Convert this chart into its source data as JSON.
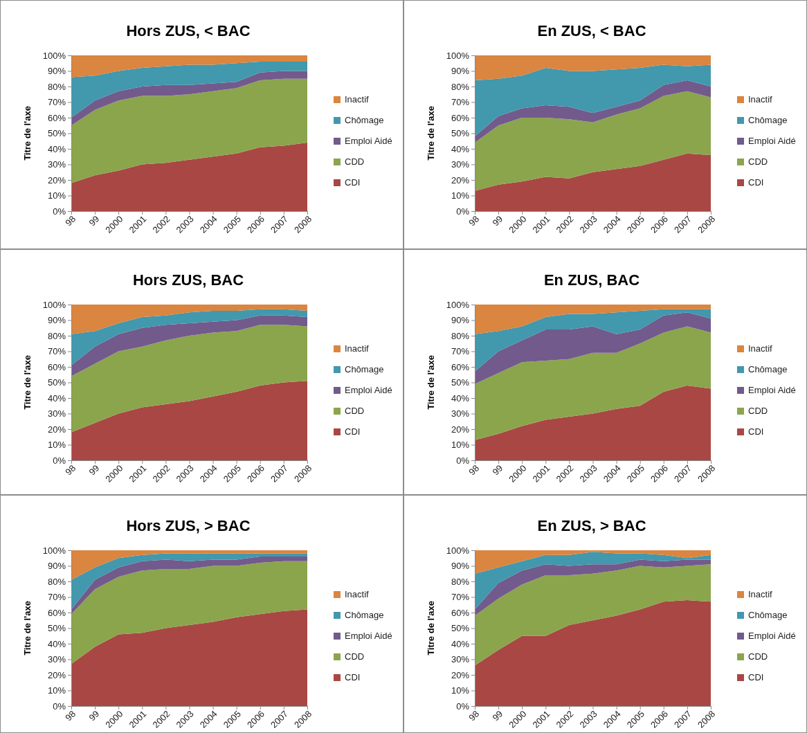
{
  "chart_data": [
    {
      "type": "area",
      "stacked": true,
      "title": "Hors ZUS, < BAC",
      "ylabel": "Titre de l'axe",
      "legend": "right",
      "categories": [
        "98",
        "99",
        "2000",
        "2001",
        "2002",
        "2003",
        "2004",
        "2005",
        "2006",
        "2007",
        "2008"
      ],
      "ylim": [
        0,
        100
      ],
      "yticks": [
        {
          "value": 0,
          "label": "0%"
        },
        {
          "value": 10,
          "label": "10%"
        },
        {
          "value": 20,
          "label": "20%"
        },
        {
          "value": 30,
          "label": "30%"
        },
        {
          "value": 40,
          "label": "40%"
        },
        {
          "value": 50,
          "label": "50%"
        },
        {
          "value": 60,
          "label": "60%"
        },
        {
          "value": 70,
          "label": "70%"
        },
        {
          "value": 80,
          "label": "80%"
        },
        {
          "value": 90,
          "label": "90%"
        },
        {
          "value": 100,
          "label": "100%"
        }
      ],
      "series": [
        {
          "name": "CDI",
          "color": "#a94744",
          "values": [
            18,
            23,
            26,
            30,
            31,
            33,
            35,
            37,
            41,
            42,
            44
          ]
        },
        {
          "name": "CDD",
          "color": "#8ba54d",
          "values": [
            37,
            42,
            45,
            44,
            43,
            42,
            42,
            42,
            43,
            43,
            41
          ]
        },
        {
          "name": "Emploi Aidé",
          "color": "#725a8c",
          "values": [
            5,
            6,
            6,
            6,
            7,
            6,
            5,
            4,
            5,
            5,
            5
          ]
        },
        {
          "name": "Chômage",
          "color": "#4298ad",
          "values": [
            26,
            16,
            13,
            12,
            12,
            13,
            12,
            12,
            7,
            6,
            6
          ]
        },
        {
          "name": "Inactif",
          "color": "#da8540",
          "values": [
            14,
            13,
            10,
            8,
            7,
            6,
            6,
            5,
            4,
            4,
            4
          ]
        }
      ]
    },
    {
      "type": "area",
      "stacked": true,
      "title": "En ZUS, < BAC",
      "ylabel": "Titre de l'axe",
      "legend": "right",
      "categories": [
        "98",
        "99",
        "2000",
        "2001",
        "2002",
        "2003",
        "2004",
        "2005",
        "2006",
        "2007",
        "2008"
      ],
      "ylim": [
        0,
        100
      ],
      "yticks": [
        {
          "value": 0,
          "label": "0%"
        },
        {
          "value": 10,
          "label": "10%"
        },
        {
          "value": 20,
          "label": "20%"
        },
        {
          "value": 30,
          "label": "30%"
        },
        {
          "value": 40,
          "label": "40%"
        },
        {
          "value": 50,
          "label": "50%"
        },
        {
          "value": 60,
          "label": "60%"
        },
        {
          "value": 70,
          "label": "70%"
        },
        {
          "value": 80,
          "label": "80%"
        },
        {
          "value": 90,
          "label": "90%"
        },
        {
          "value": 100,
          "label": "100%"
        }
      ],
      "series": [
        {
          "name": "CDI",
          "color": "#a94744",
          "values": [
            13,
            17,
            19,
            22,
            21,
            25,
            27,
            29,
            33,
            37,
            36
          ]
        },
        {
          "name": "CDD",
          "color": "#8ba54d",
          "values": [
            31,
            38,
            41,
            38,
            38,
            32,
            35,
            37,
            41,
            40,
            37
          ]
        },
        {
          "name": "Emploi Aidé",
          "color": "#725a8c",
          "values": [
            4,
            6,
            6,
            8,
            8,
            6,
            5,
            5,
            7,
            7,
            7
          ]
        },
        {
          "name": "Chômage",
          "color": "#4298ad",
          "values": [
            36,
            24,
            21,
            24,
            23,
            27,
            24,
            21,
            13,
            9,
            14
          ]
        },
        {
          "name": "Inactif",
          "color": "#da8540",
          "values": [
            16,
            15,
            13,
            8,
            10,
            10,
            9,
            8,
            6,
            7,
            6
          ]
        }
      ]
    },
    {
      "type": "area",
      "stacked": true,
      "title": "Hors ZUS, BAC",
      "ylabel": "Titre de l'axe",
      "legend": "right",
      "categories": [
        "98",
        "99",
        "2000",
        "2001",
        "2002",
        "2003",
        "2004",
        "2005",
        "2006",
        "2007",
        "2008"
      ],
      "ylim": [
        0,
        100
      ],
      "yticks": [
        {
          "value": 0,
          "label": "0%"
        },
        {
          "value": 10,
          "label": "10%"
        },
        {
          "value": 20,
          "label": "20%"
        },
        {
          "value": 30,
          "label": "30%"
        },
        {
          "value": 40,
          "label": "40%"
        },
        {
          "value": 50,
          "label": "50%"
        },
        {
          "value": 60,
          "label": "60%"
        },
        {
          "value": 70,
          "label": "70%"
        },
        {
          "value": 80,
          "label": "80%"
        },
        {
          "value": 90,
          "label": "90%"
        },
        {
          "value": 100,
          "label": "100%"
        }
      ],
      "series": [
        {
          "name": "CDI",
          "color": "#a94744",
          "values": [
            18,
            24,
            30,
            34,
            36,
            38,
            41,
            44,
            48,
            50,
            51
          ]
        },
        {
          "name": "CDD",
          "color": "#8ba54d",
          "values": [
            36,
            38,
            40,
            39,
            41,
            42,
            41,
            39,
            39,
            37,
            35
          ]
        },
        {
          "name": "Emploi Aidé",
          "color": "#725a8c",
          "values": [
            7,
            11,
            11,
            12,
            10,
            8,
            7,
            7,
            6,
            6,
            6
          ]
        },
        {
          "name": "Chômage",
          "color": "#4298ad",
          "values": [
            20,
            10,
            7,
            7,
            6,
            7,
            7,
            6,
            4,
            4,
            4
          ]
        },
        {
          "name": "Inactif",
          "color": "#da8540",
          "values": [
            19,
            17,
            12,
            8,
            7,
            5,
            4,
            4,
            3,
            3,
            4
          ]
        }
      ]
    },
    {
      "type": "area",
      "stacked": true,
      "title": "En ZUS, BAC",
      "ylabel": "Titre de l'axe",
      "legend": "right",
      "categories": [
        "98",
        "99",
        "2000",
        "2001",
        "2002",
        "2003",
        "2004",
        "2005",
        "2006",
        "2007",
        "2008"
      ],
      "ylim": [
        0,
        100
      ],
      "yticks": [
        {
          "value": 0,
          "label": "0%"
        },
        {
          "value": 10,
          "label": "10%"
        },
        {
          "value": 20,
          "label": "20%"
        },
        {
          "value": 30,
          "label": "30%"
        },
        {
          "value": 40,
          "label": "40%"
        },
        {
          "value": 50,
          "label": "50%"
        },
        {
          "value": 60,
          "label": "60%"
        },
        {
          "value": 70,
          "label": "70%"
        },
        {
          "value": 80,
          "label": "80%"
        },
        {
          "value": 90,
          "label": "90%"
        },
        {
          "value": 100,
          "label": "100%"
        }
      ],
      "series": [
        {
          "name": "CDI",
          "color": "#a94744",
          "values": [
            13,
            17,
            22,
            26,
            28,
            30,
            33,
            35,
            44,
            48,
            46
          ]
        },
        {
          "name": "CDD",
          "color": "#8ba54d",
          "values": [
            36,
            39,
            41,
            38,
            37,
            39,
            36,
            40,
            38,
            38,
            36
          ]
        },
        {
          "name": "Emploi Aidé",
          "color": "#725a8c",
          "values": [
            8,
            14,
            14,
            20,
            19,
            17,
            12,
            9,
            11,
            9,
            9
          ]
        },
        {
          "name": "Chômage",
          "color": "#4298ad",
          "values": [
            24,
            13,
            9,
            8,
            10,
            8,
            14,
            12,
            4,
            2,
            6
          ]
        },
        {
          "name": "Inactif",
          "color": "#da8540",
          "values": [
            19,
            17,
            14,
            8,
            6,
            6,
            5,
            4,
            3,
            3,
            3
          ]
        }
      ]
    },
    {
      "type": "area",
      "stacked": true,
      "title": "Hors ZUS, > BAC",
      "ylabel": "Titre de l'axe",
      "legend": "right",
      "categories": [
        "98",
        "99",
        "2000",
        "2001",
        "2002",
        "2003",
        "2004",
        "2005",
        "2006",
        "2007",
        "2008"
      ],
      "ylim": [
        0,
        100
      ],
      "yticks": [
        {
          "value": 0,
          "label": "0%"
        },
        {
          "value": 10,
          "label": "10%"
        },
        {
          "value": 20,
          "label": "20%"
        },
        {
          "value": 30,
          "label": "30%"
        },
        {
          "value": 40,
          "label": "40%"
        },
        {
          "value": 50,
          "label": "50%"
        },
        {
          "value": 60,
          "label": "60%"
        },
        {
          "value": 70,
          "label": "70%"
        },
        {
          "value": 80,
          "label": "80%"
        },
        {
          "value": 90,
          "label": "90%"
        },
        {
          "value": 100,
          "label": "100%"
        }
      ],
      "series": [
        {
          "name": "CDI",
          "color": "#a94744",
          "values": [
            27,
            38,
            46,
            47,
            50,
            52,
            54,
            57,
            59,
            61,
            62
          ]
        },
        {
          "name": "CDD",
          "color": "#8ba54d",
          "values": [
            32,
            37,
            37,
            40,
            38,
            36,
            36,
            33,
            33,
            32,
            31
          ]
        },
        {
          "name": "Emploi Aidé",
          "color": "#725a8c",
          "values": [
            3,
            6,
            6,
            6,
            6,
            5,
            4,
            4,
            4,
            3,
            3
          ]
        },
        {
          "name": "Chômage",
          "color": "#4298ad",
          "values": [
            19,
            8,
            6,
            4,
            4,
            5,
            4,
            4,
            2,
            2,
            2
          ]
        },
        {
          "name": "Inactif",
          "color": "#da8540",
          "values": [
            19,
            11,
            5,
            3,
            2,
            2,
            2,
            2,
            2,
            2,
            2
          ]
        }
      ]
    },
    {
      "type": "area",
      "stacked": true,
      "title": "En ZUS, > BAC",
      "ylabel": "Titre de l'axe",
      "legend": "right",
      "categories": [
        "98",
        "99",
        "2000",
        "2001",
        "2002",
        "2003",
        "2004",
        "2005",
        "2006",
        "2007",
        "2008"
      ],
      "ylim": [
        0,
        100
      ],
      "yticks": [
        {
          "value": 0,
          "label": "0%"
        },
        {
          "value": 10,
          "label": "10%"
        },
        {
          "value": 20,
          "label": "20%"
        },
        {
          "value": 30,
          "label": "30%"
        },
        {
          "value": 40,
          "label": "40%"
        },
        {
          "value": 50,
          "label": "50%"
        },
        {
          "value": 60,
          "label": "60%"
        },
        {
          "value": 70,
          "label": "70%"
        },
        {
          "value": 80,
          "label": "80%"
        },
        {
          "value": 90,
          "label": "90%"
        },
        {
          "value": 100,
          "label": "100%"
        }
      ],
      "series": [
        {
          "name": "CDI",
          "color": "#a94744",
          "values": [
            26,
            36,
            45,
            45,
            52,
            55,
            58,
            62,
            67,
            68,
            67
          ]
        },
        {
          "name": "CDD",
          "color": "#8ba54d",
          "values": [
            32,
            33,
            33,
            39,
            32,
            30,
            29,
            28,
            22,
            22,
            24
          ]
        },
        {
          "name": "Emploi Aidé",
          "color": "#725a8c",
          "values": [
            4,
            10,
            9,
            7,
            6,
            6,
            4,
            4,
            4,
            4,
            3
          ]
        },
        {
          "name": "Chômage",
          "color": "#4298ad",
          "values": [
            23,
            10,
            6,
            6,
            7,
            8,
            7,
            4,
            4,
            1,
            3
          ]
        },
        {
          "name": "Inactif",
          "color": "#da8540",
          "values": [
            15,
            11,
            7,
            3,
            3,
            1,
            2,
            2,
            3,
            5,
            3
          ]
        }
      ]
    }
  ]
}
